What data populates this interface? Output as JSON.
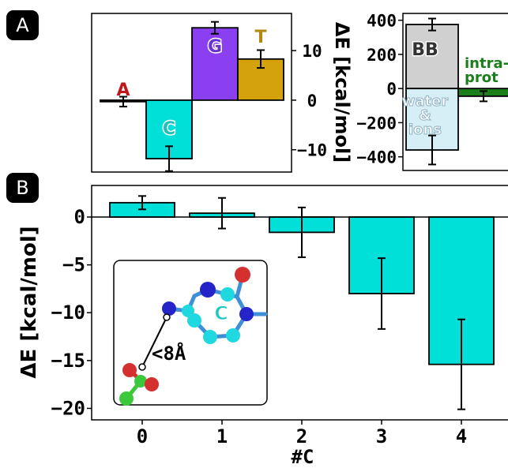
{
  "panel_labels": {
    "a": "A",
    "b": "B"
  },
  "colors": {
    "A": "#d62728",
    "C": "#00e0d8",
    "G": "#8a3ff0",
    "T": "#d4a20c",
    "BB": "#d0d0d0",
    "water": "#d6eef6",
    "intra": "#1a7f1a",
    "cyan": "#00e0d8"
  },
  "chart_data": [
    {
      "type": "bar",
      "panel": "A-left",
      "categories": [
        "A",
        "C",
        "G",
        "T"
      ],
      "values": [
        -0.3,
        -11.8,
        14.6,
        8.3
      ],
      "errors": [
        1.0,
        2.5,
        1.2,
        1.8
      ],
      "ylim": [
        -14.5,
        17.5
      ],
      "yticks": [
        10,
        0,
        -10
      ],
      "yticklabels": [
        "10",
        "0",
        "−10"
      ],
      "ylabel": "ΔE [kcal/mol]"
    },
    {
      "type": "bar",
      "panel": "A-right",
      "categories": [
        "BB",
        "water & ions",
        "intra-prot"
      ],
      "values": [
        375,
        -360,
        -45
      ],
      "errors": [
        35,
        85,
        30
      ],
      "ylim": [
        -480,
        440
      ],
      "yticks": [
        400,
        200,
        0,
        -200,
        -400
      ],
      "yticklabels": [
        "400",
        "200",
        "0",
        "−200",
        "−400"
      ],
      "labels": {
        "bb": "BB",
        "water": [
          "water",
          "&",
          "ions"
        ],
        "intra": [
          "intra-",
          "prot"
        ]
      }
    },
    {
      "type": "bar",
      "panel": "B",
      "categories": [
        "0",
        "1",
        "2",
        "3",
        "4"
      ],
      "values": [
        1.5,
        0.4,
        -1.6,
        -8.0,
        -15.4
      ],
      "errors": [
        0.7,
        1.6,
        2.6,
        3.7,
        4.7
      ],
      "ylim": [
        -21.2,
        3.3
      ],
      "yticks": [
        0,
        -5,
        -10,
        -15,
        -20
      ],
      "yticklabels": [
        "0",
        "−5",
        "−10",
        "−15",
        "−20"
      ],
      "xlabel": "#C",
      "ylabel": "ΔE [kcal/mol]"
    }
  ],
  "inset": {
    "ring_label": "C",
    "distance_label": "<8Å"
  }
}
